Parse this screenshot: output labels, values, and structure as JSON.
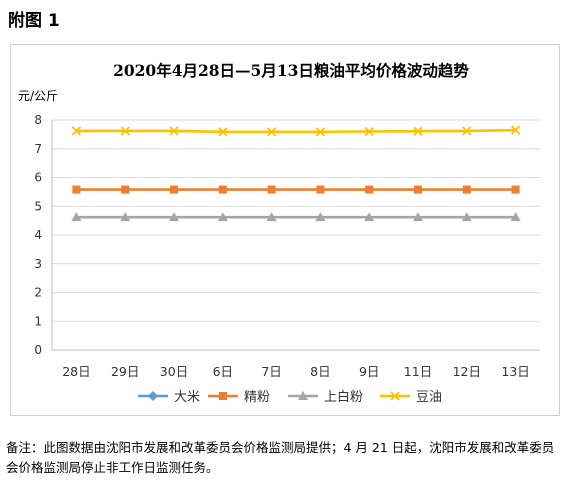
{
  "figure_label": "附图 1",
  "note": "备注：此图数据由沈阳市发展和改革委员会价格监测局提供；4 月 21 日起，沈阳市发展和改革委员会价格监测局停止非工作日监测任务。",
  "chart_data": {
    "type": "line",
    "title": "2020年4月28日—5月13日粮油平均价格波动趋势",
    "ylabel": "元/公斤",
    "xlabel": "",
    "ylim": [
      0,
      8
    ],
    "yticks": [
      0,
      1,
      2,
      3,
      4,
      5,
      6,
      7,
      8
    ],
    "grid": true,
    "legend_position": "bottom",
    "categories": [
      "28日",
      "29日",
      "30日",
      "6日",
      "7日",
      "8日",
      "9日",
      "11日",
      "12日",
      "13日"
    ],
    "series": [
      {
        "name": "大米",
        "color": "#5b9bd5",
        "marker": "diamond",
        "values": [
          null,
          null,
          null,
          null,
          null,
          null,
          null,
          null,
          null,
          null
        ]
      },
      {
        "name": "精粉",
        "color": "#ed7d31",
        "marker": "square",
        "values": [
          5.58,
          5.58,
          5.58,
          5.58,
          5.58,
          5.58,
          5.58,
          5.58,
          5.58,
          5.58
        ]
      },
      {
        "name": "上白粉",
        "color": "#a5a5a5",
        "marker": "triangle",
        "values": [
          4.62,
          4.62,
          4.62,
          4.62,
          4.62,
          4.62,
          4.62,
          4.62,
          4.62,
          4.62
        ]
      },
      {
        "name": "豆油",
        "color": "#ffc000",
        "marker": "x",
        "values": [
          7.62,
          7.62,
          7.62,
          7.59,
          7.59,
          7.59,
          7.6,
          7.61,
          7.62,
          7.65
        ]
      }
    ]
  }
}
